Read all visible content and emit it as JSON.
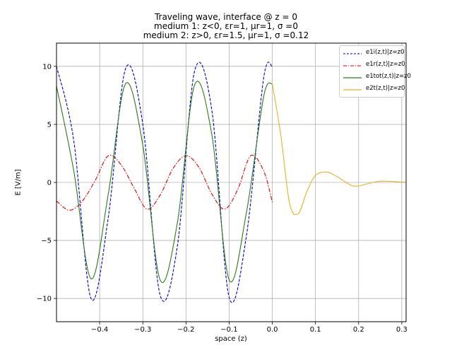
{
  "title": {
    "line1": "Traveling wave, interface @ z = 0",
    "line2": "medium 1: z<0, εr=1, μr=1, σ =0",
    "line3": "medium 2: z>0, εr=1.5, μr=1, σ =0.12"
  },
  "chart_data": {
    "type": "line",
    "title": "Traveling wave, interface @ z = 0 / medium 1: z<0, εr=1, μr=1, σ =0 / medium 2: z>0, εr=1.5, μr=1, σ =0.12",
    "xlabel": "space (z)",
    "ylabel": "E [V/m]",
    "xlim": [
      -0.5,
      0.31
    ],
    "ylim": [
      -12,
      12
    ],
    "xticks": [
      -0.4,
      -0.3,
      -0.2,
      -0.1,
      0.0,
      0.1,
      0.2,
      0.3
    ],
    "xtick_labels": [
      "−0.4",
      "−0.3",
      "−0.2",
      "−0.1",
      "0.0",
      "0.1",
      "0.2",
      "0.3"
    ],
    "yticks": [
      -10,
      -5,
      0,
      5,
      10
    ],
    "ytick_labels": [
      "−10",
      "−5",
      "0",
      "5",
      "10"
    ],
    "grid": true,
    "legend_position": "top-right",
    "series": [
      {
        "name": "e1i(z,t)|z=z0",
        "color": "#0000cc",
        "linestyle": "dashed",
        "x": [
          -0.5,
          -0.46,
          -0.42,
          -0.38,
          -0.34,
          -0.3,
          -0.26,
          -0.22,
          -0.18,
          -0.14,
          -0.1,
          -0.06,
          -0.02,
          0.0
        ],
        "y": [
          10.0,
          3.6,
          -10.0,
          -3.0,
          9.8,
          5.0,
          -9.7,
          -5.5,
          9.6,
          6.2,
          -9.9,
          -4.6,
          9.0,
          10.0
        ]
      },
      {
        "name": "e1r(z,t)|z=z0",
        "color": "#dd0000",
        "linestyle": "dashdot",
        "x": [
          -0.5,
          -0.47,
          -0.44,
          -0.41,
          -0.38,
          -0.35,
          -0.32,
          -0.29,
          -0.26,
          -0.23,
          -0.2,
          -0.17,
          -0.14,
          -0.11,
          -0.08,
          -0.05,
          -0.02,
          0.0
        ],
        "y": [
          -1.6,
          -2.4,
          -1.6,
          0.2,
          2.3,
          1.5,
          -0.5,
          -2.3,
          -1.1,
          1.2,
          2.3,
          1.3,
          -1.0,
          -2.3,
          -0.6,
          2.3,
          1.0,
          -1.7
        ]
      },
      {
        "name": "e1tot(z,t)|z=z0",
        "color": "#2a7a1a",
        "linestyle": "solid",
        "x": [
          -0.5,
          -0.46,
          -0.42,
          -0.38,
          -0.34,
          -0.3,
          -0.26,
          -0.22,
          -0.18,
          -0.14,
          -0.1,
          -0.06,
          -0.02,
          0.0
        ],
        "y": [
          8.3,
          1.0,
          -8.3,
          -1.0,
          8.5,
          3.2,
          -8.4,
          -3.5,
          8.4,
          4.1,
          -8.4,
          -2.6,
          7.4,
          8.5
        ]
      },
      {
        "name": "e2t(z,t)|z=z0",
        "color": "#e8b020",
        "linestyle": "solid",
        "x": [
          0.0,
          0.02,
          0.04,
          0.06,
          0.08,
          0.1,
          0.125,
          0.15,
          0.18,
          0.2,
          0.25,
          0.31
        ],
        "y": [
          8.5,
          4.0,
          -1.8,
          -2.7,
          -0.8,
          0.6,
          0.9,
          0.5,
          -0.2,
          -0.3,
          0.1,
          0.0
        ]
      }
    ]
  }
}
